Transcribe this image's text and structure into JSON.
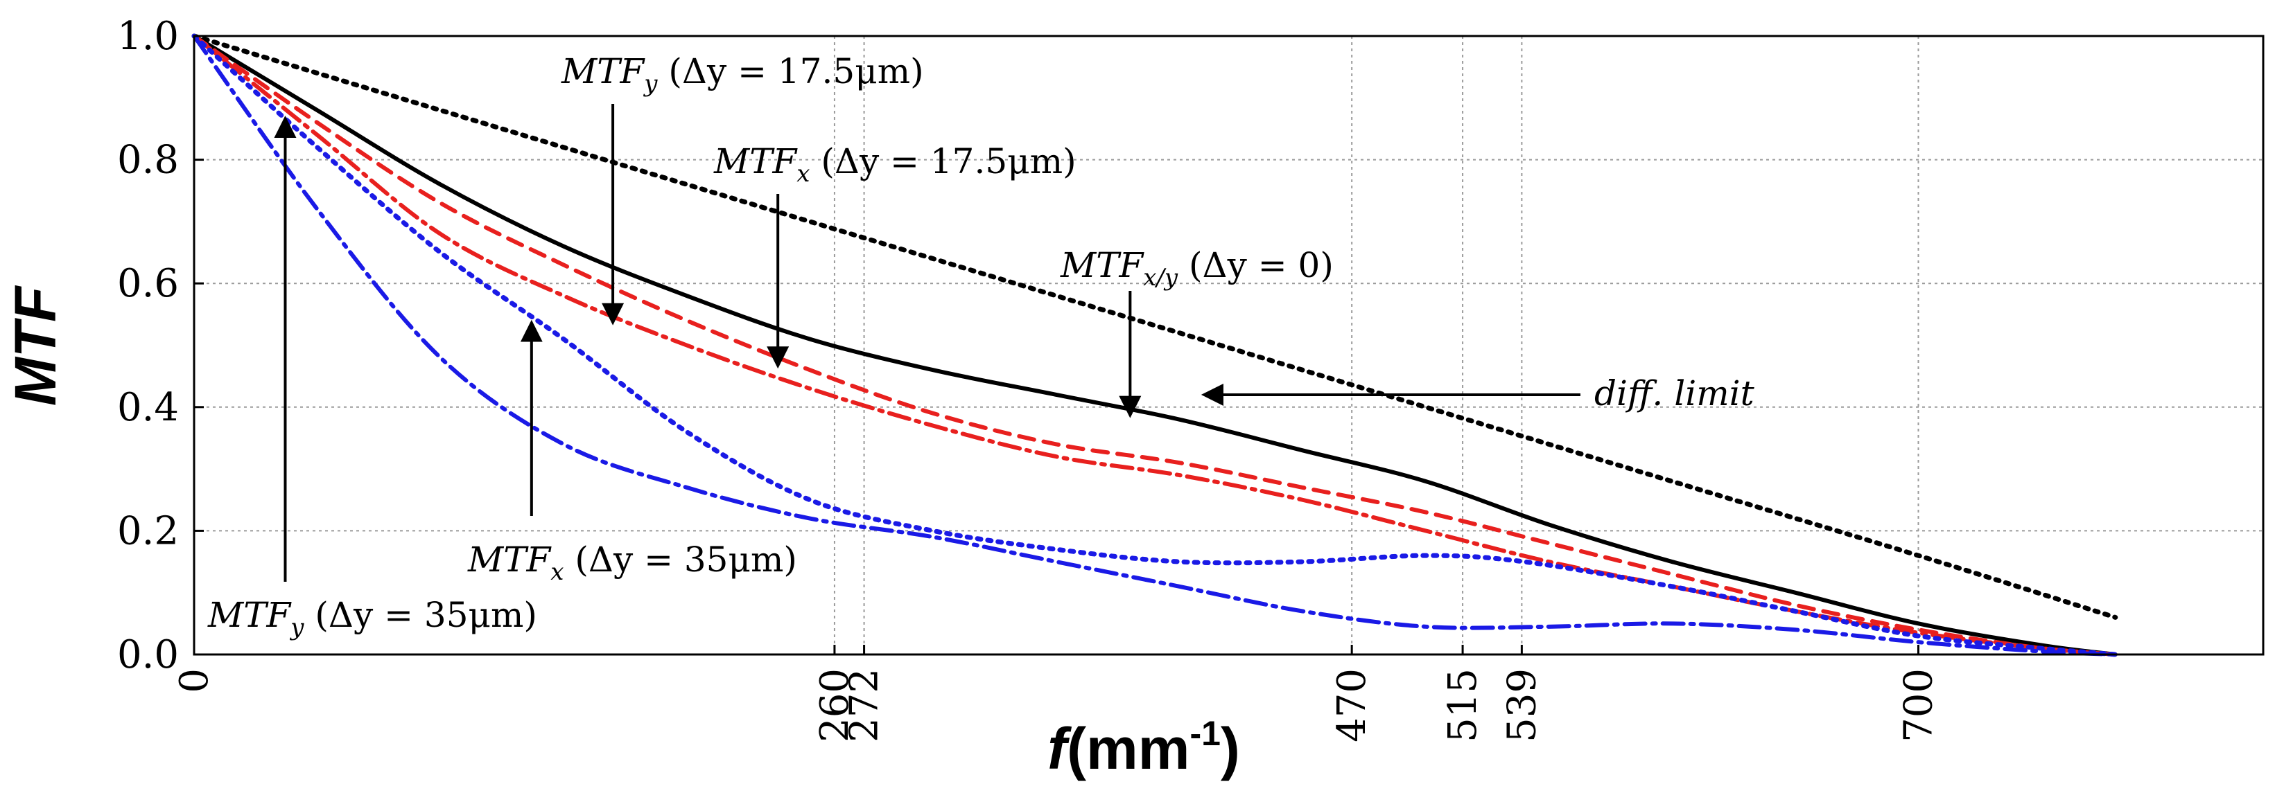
{
  "chart_data": {
    "type": "line",
    "title": "",
    "xlabel": "f(mm-1)",
    "xlabel_main": "f",
    "xlabel_unit": "(mm",
    "xlabel_sup": "-1",
    "xlabel_close": ")",
    "ylabel": "MTF",
    "xlim": [
      0,
      840
    ],
    "ylim": [
      0,
      1.0
    ],
    "grid": true,
    "xticks": [
      0,
      260,
      272,
      470,
      515,
      539,
      700
    ],
    "xtick_labels": [
      "0",
      "260",
      "272",
      "470",
      "515",
      "539",
      "700"
    ],
    "yticks": [
      0.0,
      0.2,
      0.4,
      0.6,
      0.8,
      1.0
    ],
    "ytick_labels": [
      "0.0",
      "0.2",
      "0.4",
      "0.6",
      "0.8",
      "1.0"
    ],
    "series": [
      {
        "name": "diff. limit",
        "color": "#000000",
        "style": "dotted",
        "x": [
          0,
          100,
          200,
          300,
          400,
          500,
          600,
          700,
          780
        ],
        "values": [
          1.0,
          0.88,
          0.76,
          0.64,
          0.52,
          0.4,
          0.28,
          0.16,
          0.06
        ]
      },
      {
        "name": "MTF x/y (Δy = 0)",
        "color": "#000000",
        "style": "solid",
        "x": [
          0,
          50,
          100,
          150,
          200,
          250,
          300,
          350,
          400,
          450,
          500,
          550,
          600,
          650,
          700,
          750,
          780
        ],
        "values": [
          1.0,
          0.88,
          0.76,
          0.66,
          0.58,
          0.51,
          0.46,
          0.42,
          0.38,
          0.33,
          0.28,
          0.21,
          0.15,
          0.1,
          0.05,
          0.015,
          0.0
        ]
      },
      {
        "name": "MTF x (Δy = 17.5μm)",
        "color": "#e8201e",
        "style": "dashed",
        "x": [
          0,
          50,
          100,
          150,
          200,
          250,
          300,
          350,
          400,
          450,
          500,
          550,
          600,
          650,
          700,
          750,
          780
        ],
        "values": [
          1.0,
          0.86,
          0.73,
          0.63,
          0.54,
          0.46,
          0.39,
          0.34,
          0.31,
          0.27,
          0.23,
          0.18,
          0.13,
          0.08,
          0.04,
          0.01,
          0.0
        ]
      },
      {
        "name": "MTF y (Δy = 17.5μm)",
        "color": "#e8201e",
        "style": "dashdot",
        "x": [
          0,
          50,
          100,
          150,
          200,
          250,
          300,
          350,
          400,
          450,
          500,
          550,
          600,
          650,
          700,
          750,
          780
        ],
        "values": [
          1.0,
          0.84,
          0.68,
          0.58,
          0.5,
          0.43,
          0.37,
          0.32,
          0.29,
          0.25,
          0.2,
          0.15,
          0.11,
          0.07,
          0.035,
          0.01,
          0.0
        ]
      },
      {
        "name": "MTF x (Δy = 35μm)",
        "color": "#1a1ae6",
        "style": "dotted",
        "x": [
          0,
          50,
          100,
          150,
          200,
          250,
          300,
          350,
          400,
          450,
          500,
          540,
          600,
          650,
          700,
          750,
          780
        ],
        "values": [
          1.0,
          0.82,
          0.65,
          0.51,
          0.36,
          0.25,
          0.2,
          0.17,
          0.15,
          0.15,
          0.16,
          0.15,
          0.11,
          0.07,
          0.03,
          0.01,
          0.0
        ]
      },
      {
        "name": "MTF y (Δy = 35μm)",
        "color": "#1a1ae6",
        "style": "dashdot",
        "x": [
          0,
          50,
          100,
          150,
          200,
          250,
          300,
          350,
          400,
          450,
          500,
          550,
          600,
          650,
          700,
          750,
          780
        ],
        "values": [
          1.0,
          0.72,
          0.48,
          0.34,
          0.27,
          0.22,
          0.19,
          0.15,
          0.11,
          0.07,
          0.045,
          0.045,
          0.05,
          0.04,
          0.02,
          0.005,
          0.0
        ]
      }
    ],
    "annotations": [
      {
        "text": "MTF y (Δy = 17.5μm)",
        "base": "MTF",
        "sub": "y",
        "rest": " (Δy = 17.5μm)",
        "arrow_to": [
          170,
          0.53
        ]
      },
      {
        "text": "MTF x (Δy = 17.5μm)",
        "base": "MTF",
        "sub": "x",
        "rest": " (Δy = 17.5μm)",
        "arrow_to": [
          237,
          0.46
        ]
      },
      {
        "text": "MTF x/y (Δy = 0)",
        "base": "MTF",
        "sub": "x/y",
        "rest": " (Δy = 0)",
        "arrow_to": [
          380,
          0.38
        ]
      },
      {
        "text": "diff. limit",
        "base": "diff. limit",
        "sub": "",
        "rest": "",
        "arrow_to": [
          410,
          0.42
        ]
      },
      {
        "text": "MTF x (Δy = 35μm)",
        "base": "MTF",
        "sub": "x",
        "rest": " (Δy = 35μm)",
        "arrow_to": [
          137,
          0.53
        ]
      },
      {
        "text": "MTF y (Δy = 35μm)",
        "base": "MTF",
        "sub": "y",
        "rest": " (Δy = 35μm)",
        "arrow_to": [
          37,
          0.86
        ]
      }
    ]
  }
}
